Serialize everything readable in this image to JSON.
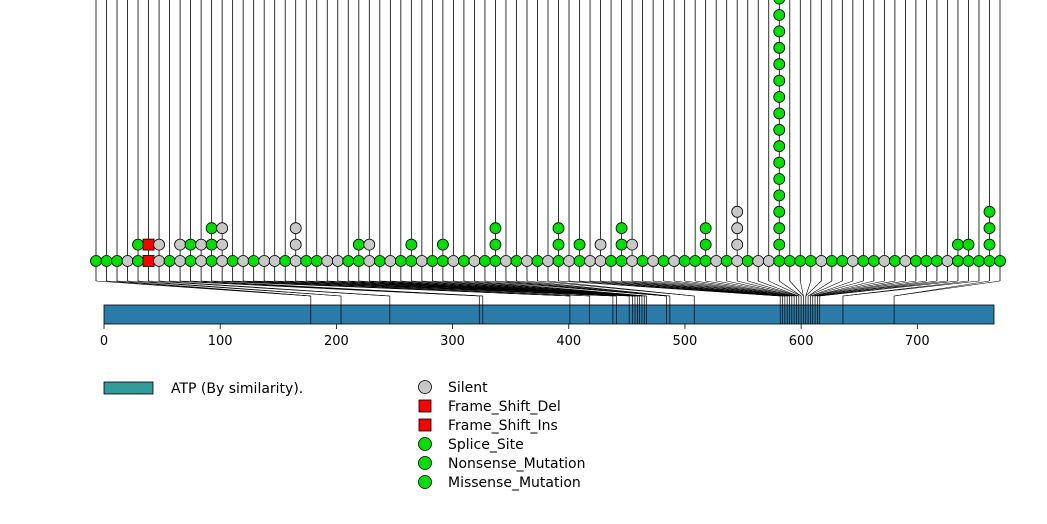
{
  "chart_data": {
    "type": "lollipop",
    "title": "",
    "xlabel": "",
    "ylabel": "",
    "protein_length": 766,
    "xlim": [
      0,
      766
    ],
    "xticks": [
      0,
      100,
      200,
      300,
      400,
      500,
      600,
      700
    ],
    "tick_labels": [
      "0",
      "100",
      "200",
      "300",
      "400",
      "500",
      "600",
      "700"
    ],
    "domains": [
      {
        "name": "ATP (By similarity).",
        "start": 0,
        "end": 766,
        "color": "#2b7ba8"
      }
    ],
    "domain_legend": {
      "label": "ATP (By similarity).",
      "color": "#339999"
    },
    "protein_ticks": [
      178,
      204,
      246,
      323,
      326,
      401,
      418,
      438,
      441,
      452,
      455,
      457,
      459,
      461,
      463,
      465,
      467,
      484,
      487,
      508,
      582,
      584,
      586,
      588,
      590,
      592,
      594,
      596,
      598,
      600,
      602,
      604,
      606,
      608,
      610,
      612,
      614,
      616,
      636,
      680
    ],
    "mutation_classes": [
      {
        "name": "Silent",
        "color": "#c8c8c8",
        "shape": "circle"
      },
      {
        "name": "Frame_Shift_Del",
        "color": "#ff0000",
        "shape": "square"
      },
      {
        "name": "Frame_Shift_Ins",
        "color": "#ff0000",
        "shape": "square"
      },
      {
        "name": "Splice_Site",
        "color": "#00e000",
        "shape": "circle"
      },
      {
        "name": "Nonsense_Mutation",
        "color": "#00e000",
        "shape": "circle"
      },
      {
        "name": "Missense_Mutation",
        "color": "#00e000",
        "shape": "circle"
      }
    ],
    "lollipops": [
      {
        "col": 0,
        "stack": [
          "Missense_Mutation"
        ]
      },
      {
        "col": 1,
        "stack": [
          "Missense_Mutation"
        ]
      },
      {
        "col": 2,
        "stack": [
          "Missense_Mutation"
        ]
      },
      {
        "col": 3,
        "stack": [
          "Silent"
        ]
      },
      {
        "col": 4,
        "stack": [
          "Missense_Mutation",
          "Missense_Mutation"
        ]
      },
      {
        "col": 5,
        "stack": [
          "Frame_Shift_Del",
          "Frame_Shift_Ins"
        ]
      },
      {
        "col": 6,
        "stack": [
          "Silent",
          "Silent"
        ]
      },
      {
        "col": 7,
        "stack": [
          "Missense_Mutation"
        ]
      },
      {
        "col": 8,
        "stack": [
          "Silent",
          "Silent"
        ]
      },
      {
        "col": 9,
        "stack": [
          "Missense_Mutation",
          "Missense_Mutation"
        ]
      },
      {
        "col": 10,
        "stack": [
          "Silent",
          "Silent"
        ]
      },
      {
        "col": 11,
        "stack": [
          "Missense_Mutation",
          "Missense_Mutation",
          "Missense_Mutation"
        ]
      },
      {
        "col": 12,
        "stack": [
          "Silent",
          "Silent",
          "Silent"
        ]
      },
      {
        "col": 13,
        "stack": [
          "Missense_Mutation"
        ]
      },
      {
        "col": 14,
        "stack": [
          "Silent"
        ]
      },
      {
        "col": 15,
        "stack": [
          "Missense_Mutation"
        ]
      },
      {
        "col": 16,
        "stack": [
          "Silent"
        ]
      },
      {
        "col": 17,
        "stack": [
          "Silent"
        ]
      },
      {
        "col": 18,
        "stack": [
          "Missense_Mutation"
        ]
      },
      {
        "col": 19,
        "stack": [
          "Silent",
          "Silent",
          "Silent"
        ]
      },
      {
        "col": 20,
        "stack": [
          "Missense_Mutation"
        ]
      },
      {
        "col": 21,
        "stack": [
          "Missense_Mutation"
        ]
      },
      {
        "col": 22,
        "stack": [
          "Silent"
        ]
      },
      {
        "col": 23,
        "stack": [
          "Silent"
        ]
      },
      {
        "col": 24,
        "stack": [
          "Missense_Mutation"
        ]
      },
      {
        "col": 25,
        "stack": [
          "Missense_Mutation",
          "Missense_Mutation"
        ]
      },
      {
        "col": 26,
        "stack": [
          "Silent",
          "Silent"
        ]
      },
      {
        "col": 27,
        "stack": [
          "Missense_Mutation"
        ]
      },
      {
        "col": 28,
        "stack": [
          "Silent"
        ]
      },
      {
        "col": 29,
        "stack": [
          "Missense_Mutation"
        ]
      },
      {
        "col": 30,
        "stack": [
          "Missense_Mutation",
          "Missense_Mutation"
        ]
      },
      {
        "col": 31,
        "stack": [
          "Silent"
        ]
      },
      {
        "col": 32,
        "stack": [
          "Missense_Mutation"
        ]
      },
      {
        "col": 33,
        "stack": [
          "Missense_Mutation",
          "Missense_Mutation"
        ]
      },
      {
        "col": 34,
        "stack": [
          "Silent"
        ]
      },
      {
        "col": 35,
        "stack": [
          "Missense_Mutation"
        ]
      },
      {
        "col": 36,
        "stack": [
          "Silent"
        ]
      },
      {
        "col": 37,
        "stack": [
          "Missense_Mutation"
        ]
      },
      {
        "col": 38,
        "stack": [
          "Missense_Mutation",
          "Missense_Mutation",
          "Missense_Mutation"
        ]
      },
      {
        "col": 39,
        "stack": [
          "Silent"
        ]
      },
      {
        "col": 40,
        "stack": [
          "Missense_Mutation"
        ]
      },
      {
        "col": 41,
        "stack": [
          "Silent"
        ]
      },
      {
        "col": 42,
        "stack": [
          "Missense_Mutation"
        ]
      },
      {
        "col": 43,
        "stack": [
          "Silent"
        ]
      },
      {
        "col": 44,
        "stack": [
          "Missense_Mutation",
          "Missense_Mutation",
          "Missense_Mutation"
        ]
      },
      {
        "col": 45,
        "stack": [
          "Silent"
        ]
      },
      {
        "col": 46,
        "stack": [
          "Missense_Mutation",
          "Missense_Mutation"
        ]
      },
      {
        "col": 47,
        "stack": [
          "Silent"
        ]
      },
      {
        "col": 48,
        "stack": [
          "Silent",
          "Silent"
        ]
      },
      {
        "col": 49,
        "stack": [
          "Missense_Mutation"
        ]
      },
      {
        "col": 50,
        "stack": [
          "Missense_Mutation",
          "Missense_Mutation",
          "Missense_Mutation"
        ]
      },
      {
        "col": 51,
        "stack": [
          "Silent",
          "Silent"
        ]
      },
      {
        "col": 52,
        "stack": [
          "Missense_Mutation"
        ]
      },
      {
        "col": 53,
        "stack": [
          "Silent"
        ]
      },
      {
        "col": 54,
        "stack": [
          "Missense_Mutation"
        ]
      },
      {
        "col": 55,
        "stack": [
          "Silent"
        ]
      },
      {
        "col": 56,
        "stack": [
          "Missense_Mutation"
        ]
      },
      {
        "col": 57,
        "stack": [
          "Missense_Mutation"
        ]
      },
      {
        "col": 58,
        "stack": [
          "Missense_Mutation",
          "Missense_Mutation",
          "Missense_Mutation"
        ]
      },
      {
        "col": 59,
        "stack": [
          "Silent"
        ]
      },
      {
        "col": 60,
        "stack": [
          "Missense_Mutation"
        ]
      },
      {
        "col": 61,
        "stack": [
          "Silent",
          "Silent",
          "Silent",
          "Silent"
        ]
      },
      {
        "col": 62,
        "stack": [
          "Missense_Mutation"
        ]
      },
      {
        "col": 63,
        "stack": [
          "Silent"
        ]
      },
      {
        "col": 64,
        "stack": [
          "Silent"
        ]
      },
      {
        "col": 65,
        "stack": [
          "Missense_Mutation",
          "Missense_Mutation",
          "Missense_Mutation",
          "Missense_Mutation",
          "Missense_Mutation",
          "Missense_Mutation",
          "Missense_Mutation",
          "Missense_Mutation",
          "Missense_Mutation",
          "Missense_Mutation",
          "Missense_Mutation",
          "Missense_Mutation",
          "Missense_Mutation",
          "Missense_Mutation",
          "Missense_Mutation",
          "Missense_Mutation",
          "Missense_Mutation"
        ]
      },
      {
        "col": 66,
        "stack": [
          "Missense_Mutation"
        ]
      },
      {
        "col": 67,
        "stack": [
          "Missense_Mutation"
        ]
      },
      {
        "col": 68,
        "stack": [
          "Missense_Mutation"
        ]
      },
      {
        "col": 69,
        "stack": [
          "Silent"
        ]
      },
      {
        "col": 70,
        "stack": [
          "Missense_Mutation"
        ]
      },
      {
        "col": 71,
        "stack": [
          "Missense_Mutation"
        ]
      },
      {
        "col": 72,
        "stack": [
          "Silent"
        ]
      },
      {
        "col": 73,
        "stack": [
          "Missense_Mutation"
        ]
      },
      {
        "col": 74,
        "stack": [
          "Missense_Mutation"
        ]
      },
      {
        "col": 75,
        "stack": [
          "Silent"
        ]
      },
      {
        "col": 76,
        "stack": [
          "Missense_Mutation"
        ]
      },
      {
        "col": 77,
        "stack": [
          "Silent"
        ]
      },
      {
        "col": 78,
        "stack": [
          "Missense_Mutation"
        ]
      },
      {
        "col": 79,
        "stack": [
          "Missense_Mutation"
        ]
      },
      {
        "col": 80,
        "stack": [
          "Missense_Mutation"
        ]
      },
      {
        "col": 81,
        "stack": [
          "Silent"
        ]
      },
      {
        "col": 82,
        "stack": [
          "Missense_Mutation",
          "Missense_Mutation"
        ]
      },
      {
        "col": 83,
        "stack": [
          "Missense_Mutation",
          "Missense_Mutation"
        ]
      },
      {
        "col": 84,
        "stack": [
          "Missense_Mutation"
        ]
      },
      {
        "col": 85,
        "stack": [
          "Missense_Mutation",
          "Missense_Mutation",
          "Missense_Mutation",
          "Missense_Mutation"
        ]
      },
      {
        "col": 86,
        "stack": [
          "Missense_Mutation"
        ]
      }
    ]
  },
  "legend": {
    "domain_label": "ATP (By similarity).",
    "mutation_labels": [
      "Silent",
      "Frame_Shift_Del",
      "Frame_Shift_Ins",
      "Splice_Site",
      "Nonsense_Mutation",
      "Missense_Mutation"
    ]
  }
}
